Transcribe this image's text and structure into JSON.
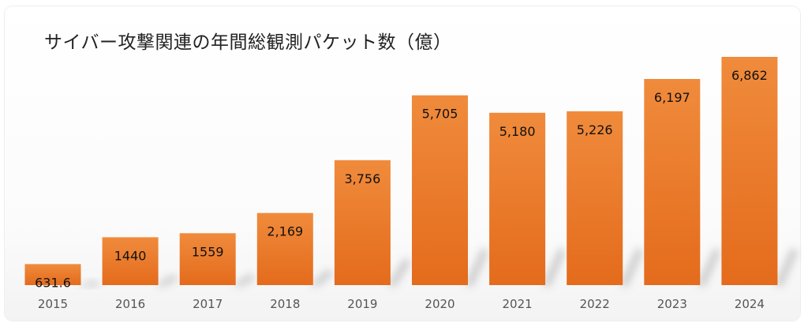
{
  "chart_data": {
    "type": "bar",
    "title": "サイバー攻撃関連の年間総観測パケット数（億）",
    "categories": [
      "2015",
      "2016",
      "2017",
      "2018",
      "2019",
      "2020",
      "2021",
      "2022",
      "2023",
      "2024"
    ],
    "values": [
      631.6,
      1440,
      1559,
      2169,
      3756,
      5705,
      5180,
      5226,
      6197,
      6862
    ],
    "data_labels": [
      "631.6",
      "1440",
      "1559",
      "2,169",
      "3,756",
      "5,705",
      "5,180",
      "5,226",
      "6,197",
      "6,862"
    ],
    "xlabel": "",
    "ylabel": "",
    "ylim": [
      0,
      6862
    ],
    "grid": false,
    "legend": "none",
    "colors": {
      "bar_top": "#f08b3c",
      "bar_bottom": "#e46b1c",
      "label": "#111111",
      "tick": "#555555"
    }
  }
}
